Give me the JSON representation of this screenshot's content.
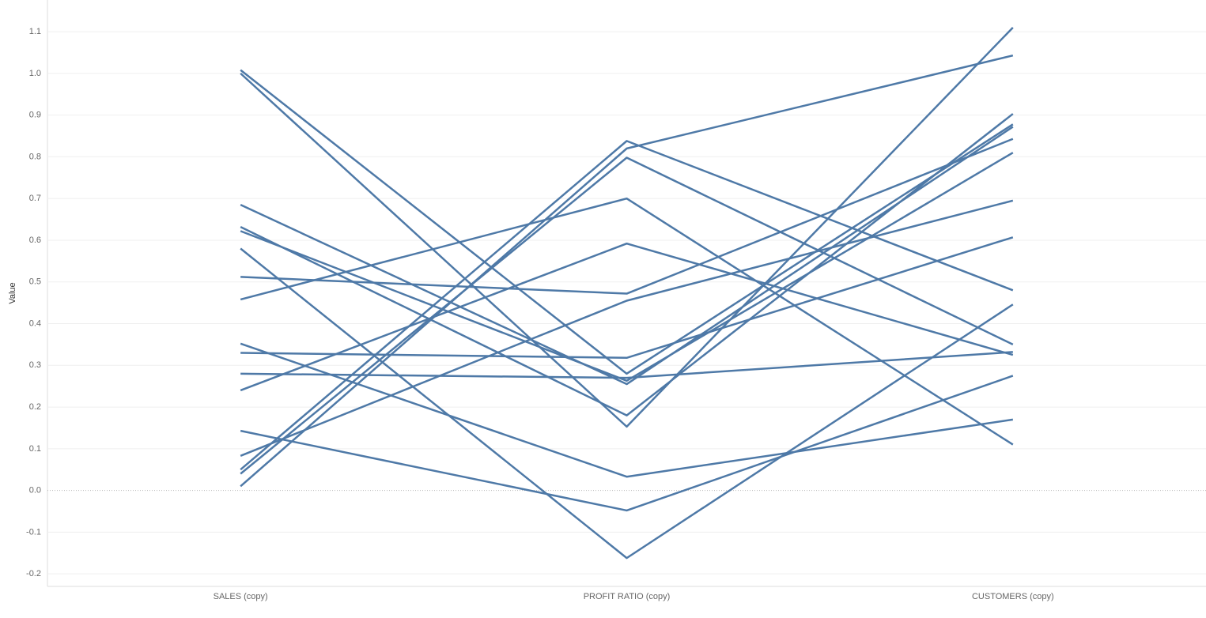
{
  "chart_data": {
    "type": "parallel",
    "ylabel": "Value",
    "categories": [
      "SALES (copy)",
      "PROFIT RATIO (copy)",
      "CUSTOMERS (copy)"
    ],
    "color": "#4e79a7",
    "ylim": [
      -0.23,
      1.176
    ],
    "yticks": [
      -0.2,
      -0.1,
      {
        "value": 0,
        "label": "0.0"
      },
      0.1,
      0.2,
      0.3,
      0.4,
      0.5,
      0.6,
      0.7,
      0.8,
      0.9,
      {
        "value": 1,
        "label": "1.0"
      },
      1.1
    ],
    "grid": true,
    "series": [
      {
        "values": [
          1.008,
          0.28,
          0.878
        ]
      },
      {
        "values": [
          1.0,
          0.153,
          1.11
        ]
      },
      {
        "values": [
          0.685,
          0.255,
          0.872
        ]
      },
      {
        "values": [
          0.632,
          0.18,
          0.903
        ]
      },
      {
        "values": [
          0.622,
          0.263,
          0.81
        ]
      },
      {
        "values": [
          0.58,
          -0.162,
          0.446
        ]
      },
      {
        "values": [
          0.512,
          0.472,
          0.843
        ]
      },
      {
        "values": [
          0.458,
          0.7,
          0.11
        ]
      },
      {
        "values": [
          0.352,
          0.033,
          0.17
        ]
      },
      {
        "values": [
          0.33,
          0.318,
          0.607
        ]
      },
      {
        "values": [
          0.28,
          0.27,
          0.332
        ]
      },
      {
        "values": [
          0.24,
          0.592,
          0.325
        ]
      },
      {
        "values": [
          0.143,
          -0.048,
          0.275
        ]
      },
      {
        "values": [
          0.083,
          0.455,
          0.695
        ]
      },
      {
        "values": [
          0.05,
          0.838,
          0.48
        ]
      },
      {
        "values": [
          0.04,
          0.798,
          0.35
        ]
      },
      {
        "values": [
          0.01,
          0.82,
          1.043
        ]
      }
    ]
  }
}
